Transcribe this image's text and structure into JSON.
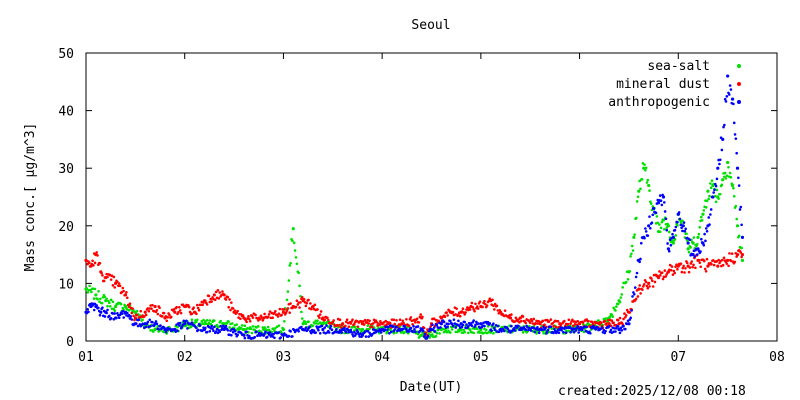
{
  "footer": {
    "created": "created:2025/12/08 00:18"
  },
  "chart_data": {
    "type": "scatter",
    "title": "Seoul",
    "xlabel": "Date(UT)",
    "ylabel": "Mass conc.[ μg/m^3]",
    "xlim": [
      1,
      8
    ],
    "ylim": [
      0,
      50
    ],
    "xticks": [
      1,
      2,
      3,
      4,
      5,
      6,
      7,
      8
    ],
    "xticklabels": [
      "01",
      "02",
      "03",
      "04",
      "05",
      "06",
      "07",
      "08"
    ],
    "yticks": [
      0,
      10,
      20,
      30,
      40,
      50
    ],
    "yticklabels": [
      "0",
      "10",
      "20",
      "30",
      "40",
      "50"
    ],
    "grid": false,
    "legend_position": "top-right",
    "series": [
      {
        "name": "sea-salt",
        "color": "#00e000",
        "x": [
          1.0,
          1.1,
          1.2,
          1.3,
          1.4,
          1.5,
          1.6,
          1.7,
          1.8,
          1.9,
          2.0,
          2.2,
          2.4,
          2.6,
          2.8,
          3.0,
          3.1,
          3.2,
          3.4,
          3.6,
          3.8,
          4.0,
          4.2,
          4.4,
          4.5,
          4.6,
          4.8,
          5.0,
          5.2,
          5.4,
          5.6,
          5.8,
          6.0,
          6.2,
          6.3,
          6.4,
          6.5,
          6.55,
          6.6,
          6.65,
          6.7,
          6.75,
          6.8,
          6.85,
          6.9,
          6.95,
          7.0,
          7.05,
          7.1,
          7.15,
          7.2,
          7.25,
          7.3,
          7.35,
          7.4,
          7.45,
          7.5,
          7.55,
          7.6,
          7.65
        ],
        "y": [
          9,
          8,
          7,
          6,
          6,
          5,
          3,
          2,
          2,
          2,
          3,
          3,
          3,
          2,
          2,
          2,
          19.5,
          3,
          3,
          2,
          2,
          2,
          2,
          1,
          1,
          2,
          2,
          2,
          2,
          2,
          2,
          2,
          2,
          3,
          4,
          7,
          12,
          18,
          26,
          30,
          27,
          23,
          19,
          21,
          20,
          17,
          22,
          20,
          16,
          17,
          18,
          22,
          26,
          27,
          25,
          28,
          31,
          27,
          20,
          14
        ]
      },
      {
        "name": "mineral dust",
        "color": "#ff0000",
        "x": [
          1.0,
          1.05,
          1.1,
          1.15,
          1.2,
          1.3,
          1.4,
          1.5,
          1.6,
          1.7,
          1.8,
          1.9,
          2.0,
          2.1,
          2.2,
          2.3,
          2.4,
          2.5,
          2.6,
          2.8,
          3.0,
          3.1,
          3.2,
          3.3,
          3.4,
          3.6,
          3.8,
          4.0,
          4.2,
          4.4,
          4.45,
          4.5,
          4.6,
          4.7,
          4.8,
          4.9,
          5.0,
          5.1,
          5.2,
          5.3,
          5.4,
          5.6,
          5.8,
          6.0,
          6.2,
          6.3,
          6.4,
          6.5,
          6.6,
          6.7,
          6.8,
          6.9,
          7.0,
          7.1,
          7.2,
          7.3,
          7.4,
          7.5,
          7.6,
          7.65
        ],
        "y": [
          14,
          13,
          15,
          12,
          11,
          10,
          8,
          4,
          5,
          6,
          4,
          5,
          6,
          5,
          7,
          8,
          8,
          5,
          4,
          4,
          5,
          6,
          7,
          6,
          4,
          3,
          3,
          3,
          3,
          4,
          1,
          3,
          4,
          5,
          5,
          6,
          6,
          7,
          5,
          4,
          4,
          3,
          3,
          3,
          3,
          3,
          3,
          5,
          9,
          10,
          11,
          12,
          13,
          13,
          14,
          13,
          13,
          14,
          15,
          15
        ]
      },
      {
        "name": "anthropogenic",
        "color": "#0000ff",
        "x": [
          1.0,
          1.05,
          1.1,
          1.15,
          1.2,
          1.3,
          1.4,
          1.5,
          1.6,
          1.7,
          1.8,
          1.9,
          2.0,
          2.2,
          2.4,
          2.6,
          2.8,
          3.0,
          3.2,
          3.4,
          3.6,
          3.8,
          4.0,
          4.2,
          4.4,
          4.45,
          4.5,
          4.6,
          4.8,
          5.0,
          5.2,
          5.4,
          5.6,
          5.8,
          6.0,
          6.2,
          6.4,
          6.5,
          6.6,
          6.65,
          6.7,
          6.75,
          6.8,
          6.85,
          6.9,
          6.95,
          7.0,
          7.05,
          7.1,
          7.15,
          7.2,
          7.25,
          7.3,
          7.35,
          7.4,
          7.45,
          7.5,
          7.55,
          7.6,
          7.65
        ],
        "y": [
          5,
          6,
          6,
          5,
          5,
          4,
          5,
          3,
          3,
          3,
          2,
          2,
          3,
          2,
          2,
          1,
          1,
          1,
          2,
          2,
          2,
          1,
          2,
          2,
          2,
          0.5,
          2,
          3,
          3,
          3,
          2,
          2,
          2,
          2,
          2,
          2,
          2,
          3,
          14,
          18,
          20,
          23,
          24,
          25,
          16,
          18,
          22,
          20,
          17,
          15,
          16,
          17,
          20,
          25,
          30,
          35,
          46,
          42,
          30,
          18
        ]
      }
    ]
  }
}
